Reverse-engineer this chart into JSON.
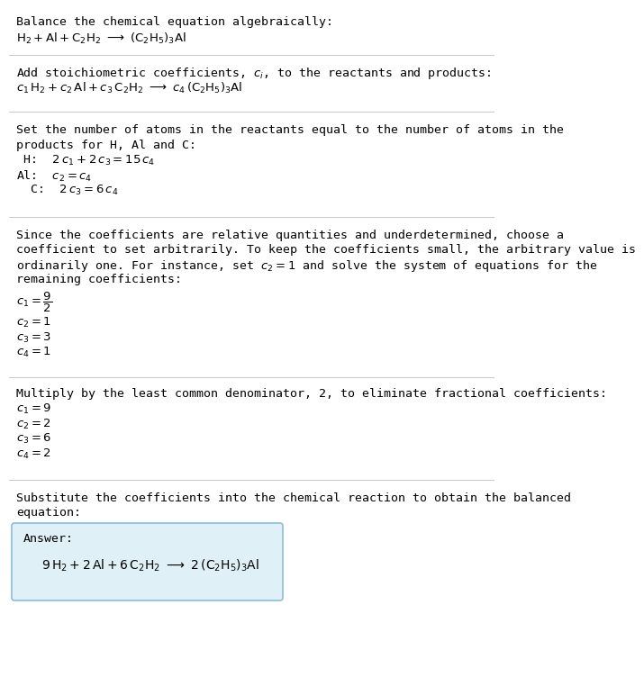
{
  "bg_color": "#ffffff",
  "text_color": "#000000",
  "divider_color": "#cccccc",
  "answer_box_fill": "#dff0f7",
  "answer_box_edge": "#88c0d8",
  "font_family": "monospace",
  "fs_body": 9.5,
  "fs_math": 9.5,
  "sections": [
    {
      "label": "Balance the chemical equation algebraically:",
      "lines": [
        "$\\mathrm{H_2 + Al + C_2H_2 \\longrightarrow (C_2H_5)_3Al}$"
      ]
    },
    {
      "label": "Add stoichiometric coefficients, $c_i$, to the reactants and products:",
      "lines": [
        "$c_1\\,\\mathrm{H_2} + c_2\\,\\mathrm{Al} + c_3\\,\\mathrm{C_2H_2} \\longrightarrow c_4\\,(\\mathrm{C_2H_5})_3\\mathrm{Al}$"
      ]
    },
    {
      "label": "Set the number of atoms in the reactants equal to the number of atoms in the\nproducts for H, Al and C:",
      "lines": [
        " H:\\;\\; $2\\,c_1 + 2\\,c_3 = 15\\,c_4$",
        "Al:\\;\\; $c_2 = c_4$",
        "  C:\\;\\; $2\\,c_3 = 6\\,c_4$"
      ]
    },
    {
      "label": "Since the coefficients are relative quantities and underdetermined, choose a\ncoefficient to set arbitrarily. To keep the coefficients small, the arbitrary value is\nordinarily one. For instance, set $c_2 = 1$ and solve the system of equations for the\nremaining coefficients:",
      "lines": [
        "$c_1 = \\dfrac{9}{2}$",
        "$c_2 = 1$",
        "$c_3 = 3$",
        "$c_4 = 1$"
      ]
    },
    {
      "label": "Multiply by the least common denominator, 2, to eliminate fractional coefficients:",
      "lines": [
        "$c_1 = 9$",
        "$c_2 = 2$",
        "$c_3 = 6$",
        "$c_4 = 2$"
      ]
    },
    {
      "label": "Substitute the coefficients into the chemical reaction to obtain the balanced\nequation:",
      "lines": []
    }
  ],
  "answer_label": "Answer:",
  "answer_eq": "$9\\,\\mathrm{H_2} + 2\\,\\mathrm{Al} + 6\\,\\mathrm{C_2H_2} \\longrightarrow 2\\,(\\mathrm{C_2H_5})_3\\mathrm{Al}$"
}
